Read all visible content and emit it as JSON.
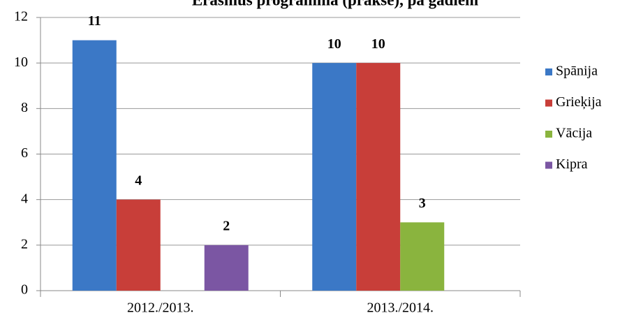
{
  "chart_data": {
    "type": "bar",
    "title": "Erasmus programma (prakse), pa gadiem",
    "categories": [
      "2012./2013.",
      "2013./2014."
    ],
    "series": [
      {
        "name": "Spānija",
        "color": "#3b78c6",
        "values": [
          11,
          10
        ]
      },
      {
        "name": "Grieķija",
        "color": "#c83e39",
        "values": [
          4,
          10
        ]
      },
      {
        "name": "Vācija",
        "color": "#8ab43e",
        "values": [
          null,
          3
        ]
      },
      {
        "name": "Kipra",
        "color": "#7b56a3",
        "values": [
          2,
          null
        ]
      }
    ],
    "ylim": [
      0,
      12
    ],
    "yticks": [
      0,
      2,
      4,
      6,
      8,
      10,
      12
    ],
    "grid": true,
    "legend": "right"
  }
}
